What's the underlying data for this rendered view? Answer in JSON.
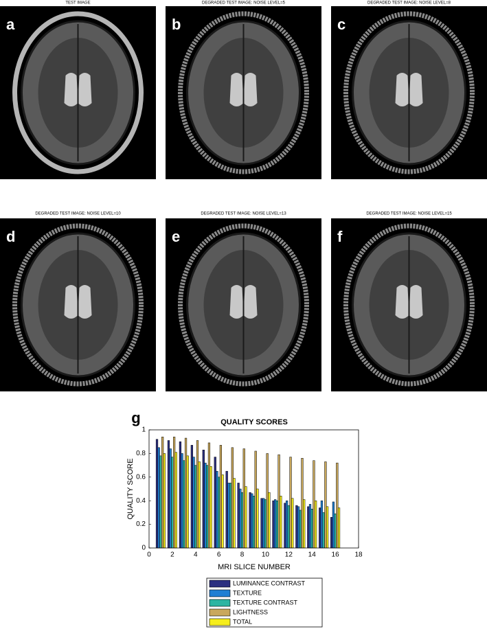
{
  "panels": [
    {
      "letter": "a",
      "title": "TEST IMAGE"
    },
    {
      "letter": "b",
      "title": "DEGRADED TEST IMAGE: NOISE LEVEL=5"
    },
    {
      "letter": "c",
      "title": "DEGRADED TEST IMAGE: NOISE LEVEL=8"
    },
    {
      "letter": "d",
      "title": "DEGRADED TEST IMAGE: NOISE LEVEL=10"
    },
    {
      "letter": "e",
      "title": "DEGRADED TEST IMAGE: NOISE LEVEL=13"
    },
    {
      "letter": "f",
      "title": "DEGRADED TEST IMAGE: NOISE LEVEL=15"
    }
  ],
  "chart_letter": "g",
  "chart_data": {
    "type": "bar",
    "title": "QUALITY SCORES",
    "x_label": "MRI SLICE NUMBER",
    "y_label": "QUALITY SCORE",
    "x": [
      1,
      2,
      3,
      4,
      5,
      6,
      7,
      8,
      9,
      10,
      11,
      12,
      13,
      14,
      15,
      16
    ],
    "series": [
      {
        "name": "LUMINANCE CONTRAST",
        "color": "#2b2f80",
        "values": [
          0.92,
          0.91,
          0.9,
          0.87,
          0.83,
          0.77,
          0.65,
          0.55,
          0.47,
          0.42,
          0.4,
          0.38,
          0.36,
          0.35,
          0.34,
          0.26
        ]
      },
      {
        "name": "TEXTURE",
        "color": "#1f7fd3",
        "values": [
          0.85,
          0.84,
          0.8,
          0.77,
          0.72,
          0.65,
          0.55,
          0.5,
          0.46,
          0.42,
          0.41,
          0.4,
          0.35,
          0.37,
          0.4,
          0.39
        ]
      },
      {
        "name": "TEXTURE CONTRAST",
        "color": "#2cb5a2",
        "values": [
          0.78,
          0.77,
          0.74,
          0.7,
          0.7,
          0.6,
          0.55,
          0.47,
          0.44,
          0.41,
          0.4,
          0.36,
          0.32,
          0.33,
          0.3,
          0.29
        ]
      },
      {
        "name": "LIGHTNESS",
        "color": "#c9a85c",
        "values": [
          0.94,
          0.94,
          0.93,
          0.91,
          0.89,
          0.87,
          0.85,
          0.84,
          0.82,
          0.8,
          0.79,
          0.77,
          0.76,
          0.74,
          0.73,
          0.72
        ]
      },
      {
        "name": "TOTAL",
        "color": "#f6ee1c",
        "values": [
          0.8,
          0.81,
          0.78,
          0.73,
          0.69,
          0.62,
          0.59,
          0.52,
          0.5,
          0.47,
          0.44,
          0.42,
          0.41,
          0.4,
          0.35,
          0.34
        ]
      }
    ],
    "xlim": [
      0,
      18
    ],
    "xticks": [
      0,
      2,
      4,
      6,
      8,
      10,
      12,
      14,
      16,
      18
    ],
    "ylim": [
      0,
      1
    ],
    "yticks": [
      0,
      0.2,
      0.4,
      0.6,
      0.8,
      1
    ]
  }
}
